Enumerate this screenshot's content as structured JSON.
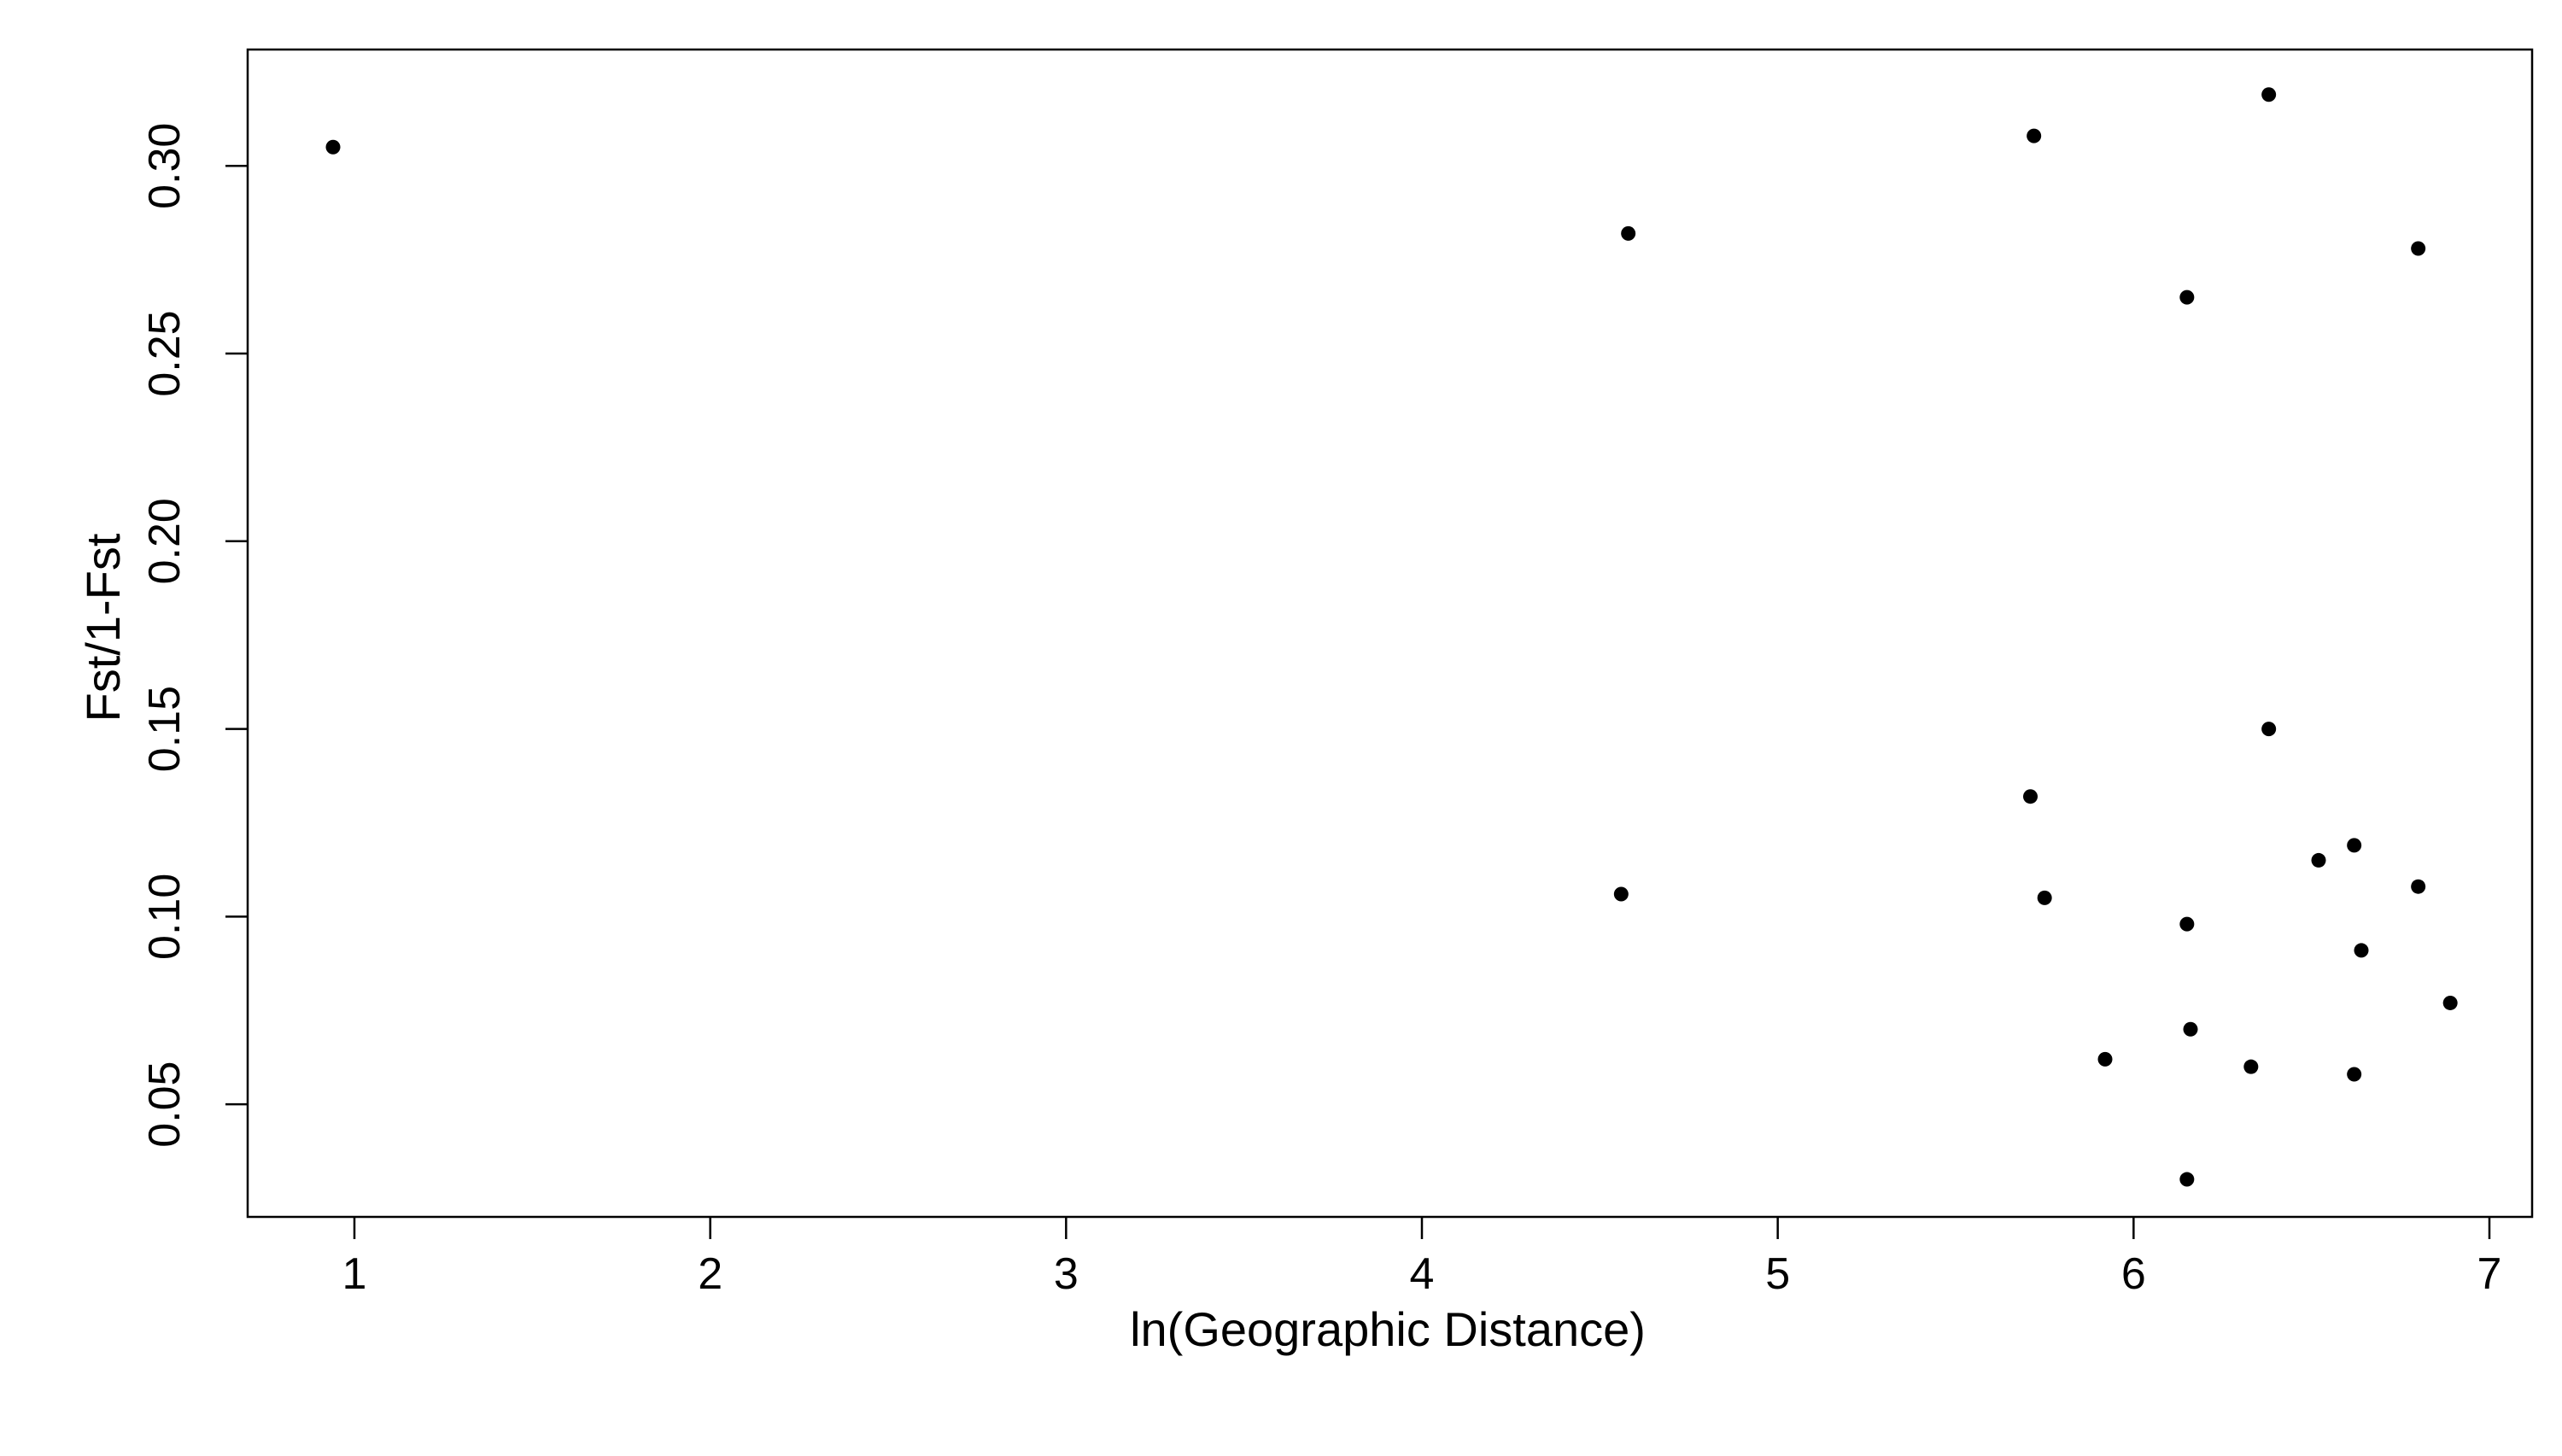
{
  "chart_data": {
    "type": "scatter",
    "title": "",
    "xlabel": "ln(Geographic Distance)",
    "ylabel": "Fst/1-Fst",
    "xlim": [
      0.7,
      7.12
    ],
    "ylim": [
      0.02,
      0.331
    ],
    "x_ticks": [
      1,
      2,
      3,
      4,
      5,
      6,
      7
    ],
    "x_tick_labels": [
      "1",
      "2",
      "3",
      "4",
      "5",
      "6",
      "7"
    ],
    "y_ticks": [
      0.05,
      0.1,
      0.15,
      0.2,
      0.25,
      0.3
    ],
    "y_tick_labels": [
      "0.05",
      "0.10",
      "0.15",
      "0.20",
      "0.25",
      "0.30"
    ],
    "grid": false,
    "legend": "none",
    "colors": {
      "points": "#000000",
      "axes": "#000000",
      "background": "#ffffff"
    },
    "series": [
      {
        "points": [
          {
            "x": 0.94,
            "y": 0.305
          },
          {
            "x": 4.56,
            "y": 0.106
          },
          {
            "x": 4.58,
            "y": 0.282
          },
          {
            "x": 5.71,
            "y": 0.132
          },
          {
            "x": 5.72,
            "y": 0.308
          },
          {
            "x": 5.75,
            "y": 0.105
          },
          {
            "x": 5.92,
            "y": 0.062
          },
          {
            "x": 6.15,
            "y": 0.265
          },
          {
            "x": 6.15,
            "y": 0.098
          },
          {
            "x": 6.15,
            "y": 0.03
          },
          {
            "x": 6.16,
            "y": 0.07
          },
          {
            "x": 6.33,
            "y": 0.06
          },
          {
            "x": 6.38,
            "y": 0.319
          },
          {
            "x": 6.38,
            "y": 0.15
          },
          {
            "x": 6.52,
            "y": 0.115
          },
          {
            "x": 6.62,
            "y": 0.119
          },
          {
            "x": 6.62,
            "y": 0.058
          },
          {
            "x": 6.64,
            "y": 0.091
          },
          {
            "x": 6.8,
            "y": 0.278
          },
          {
            "x": 6.8,
            "y": 0.108
          },
          {
            "x": 6.89,
            "y": 0.077
          }
        ]
      }
    ]
  }
}
